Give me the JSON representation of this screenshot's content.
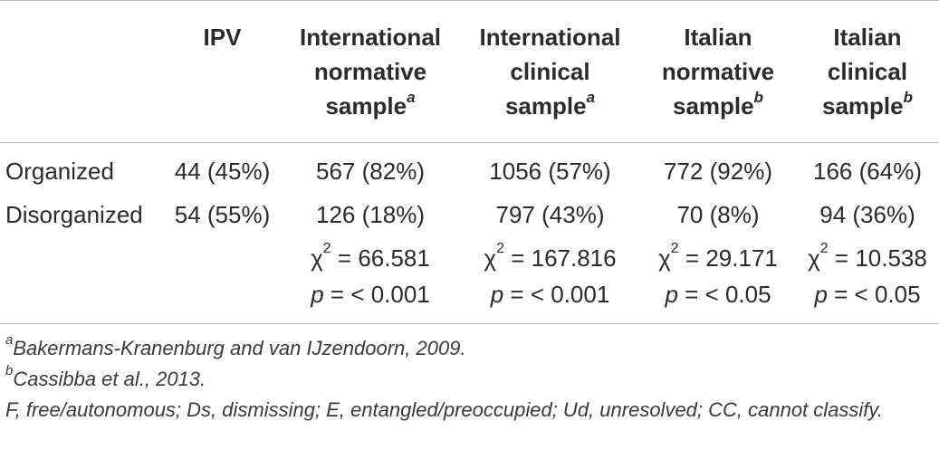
{
  "headers": {
    "ipv": "IPV",
    "int_norm": {
      "line1": "International",
      "line2": "normative",
      "line3": "sample",
      "sup": "a"
    },
    "int_clin": {
      "line1": "International",
      "line2": "clinical",
      "line3": "sample",
      "sup": "a"
    },
    "ita_norm": {
      "line1": "Italian",
      "line2": "normative",
      "line3": "sample",
      "sup": "b"
    },
    "ita_clin": {
      "line1": "Italian",
      "line2": "clinical",
      "line3": "sample",
      "sup": "b"
    }
  },
  "rows": [
    {
      "label": "Organized",
      "ipv": "44 (45%)",
      "int_norm": "567 (82%)",
      "int_clin": "1056 (57%)",
      "ita_norm": "772 (92%)",
      "ita_clin": "166 (64%)"
    },
    {
      "label": "Disorganized",
      "ipv": "54 (55%)",
      "int_norm": "126 (18%)",
      "int_clin": "797 (43%)",
      "ita_norm": "70 (8%)",
      "ita_clin": "94 (36%)"
    }
  ],
  "chi": {
    "symbol": "χ",
    "exp": "2",
    "int_norm": "= 66.581",
    "int_clin": "= 167.816",
    "ita_norm": "= 29.171",
    "ita_clin": "= 10.538"
  },
  "pvals": {
    "p": "p",
    "int_norm": "= < 0.001",
    "int_clin": "= < 0.001",
    "ita_norm": "= < 0.05",
    "ita_clin": "= < 0.05"
  },
  "notes": {
    "a_marker": "a",
    "a_text": "Bakermans-Kranenburg and van IJzendoorn, 2009.",
    "b_marker": "b",
    "b_text": "Cassibba et al., 2013.",
    "abbreviations": "F, free/autonomous; Ds, dismissing; E, entangled/preoccupied; Ud, unresolved; CC, cannot classify."
  }
}
